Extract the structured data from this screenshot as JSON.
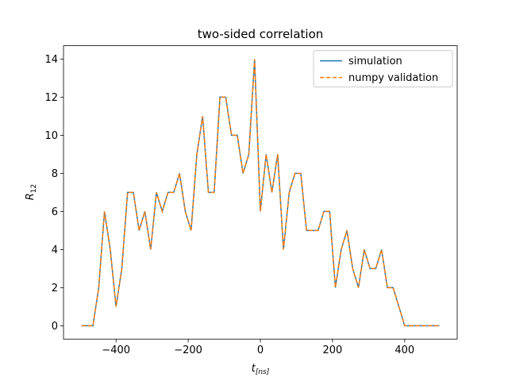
{
  "chart_data": {
    "type": "line",
    "title": "two-sided correlation",
    "xlabel": {
      "base": "t",
      "sub": "[ns]"
    },
    "ylabel": {
      "base": "R",
      "sub": "12"
    },
    "x": [
      -496,
      -480,
      -464,
      -448,
      -432,
      -416,
      -400,
      -384,
      -368,
      -352,
      -336,
      -320,
      -304,
      -288,
      -272,
      -256,
      -240,
      -224,
      -208,
      -192,
      -176,
      -160,
      -144,
      -128,
      -112,
      -96,
      -80,
      -64,
      -48,
      -32,
      -16,
      0,
      16,
      32,
      48,
      64,
      80,
      96,
      112,
      128,
      144,
      160,
      176,
      192,
      208,
      224,
      240,
      256,
      272,
      288,
      304,
      320,
      336,
      352,
      368,
      384,
      400,
      416,
      432,
      448,
      464,
      480,
      496
    ],
    "series": [
      {
        "name": "simulation",
        "color": "#1f77b4",
        "dash": false,
        "values": [
          0,
          0,
          0,
          2,
          6,
          4,
          1,
          3,
          7,
          7,
          5,
          6,
          4,
          7,
          6,
          7,
          7,
          8,
          6,
          5,
          9,
          11,
          7,
          7,
          12,
          12,
          10,
          10,
          8,
          9,
          14,
          6,
          9,
          7,
          9,
          4,
          7,
          8,
          8,
          5,
          5,
          5,
          6,
          6,
          2,
          4,
          5,
          3,
          2,
          4,
          3,
          3,
          4,
          2,
          2,
          1,
          0,
          0,
          0,
          0,
          0,
          0,
          0
        ]
      },
      {
        "name": "numpy validation",
        "color": "#ff7f0e",
        "dash": true,
        "values": [
          0,
          0,
          0,
          2,
          6,
          4,
          1,
          3,
          7,
          7,
          5,
          6,
          4,
          7,
          6,
          7,
          7,
          8,
          6,
          5,
          9,
          11,
          7,
          7,
          12,
          12,
          10,
          10,
          8,
          9,
          14,
          6,
          9,
          7,
          9,
          4,
          7,
          8,
          8,
          5,
          5,
          5,
          6,
          6,
          2,
          4,
          5,
          3,
          2,
          4,
          3,
          3,
          4,
          2,
          2,
          1,
          0,
          0,
          0,
          0,
          0,
          0,
          0
        ]
      }
    ],
    "xlim": [
      -545.6,
      545.6
    ],
    "ylim": [
      -0.7,
      14.7
    ],
    "xticks": [
      {
        "value": -400,
        "label": "−400"
      },
      {
        "value": -200,
        "label": "−200"
      },
      0,
      200,
      400
    ],
    "yticks": [
      0,
      2,
      4,
      6,
      8,
      10,
      12,
      14
    ],
    "legend": "upper right"
  }
}
